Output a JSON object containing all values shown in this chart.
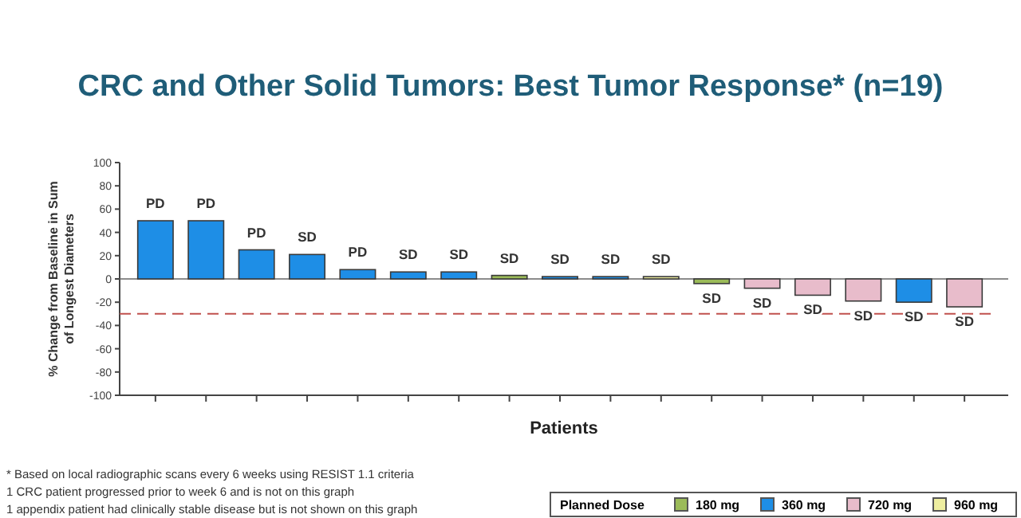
{
  "chart_data": {
    "type": "bar",
    "title": "CRC and Other Solid Tumors: Best Tumor Response* (n=19)",
    "xlabel": "Patients",
    "ylabel": "% Change from Baseline in Sum of Longest Diameters",
    "legend_title": "Planned Dose",
    "categories": [
      null,
      null,
      null,
      null,
      null,
      null,
      null,
      null,
      null,
      null,
      null,
      null,
      null,
      null,
      null,
      null,
      null
    ],
    "stacked": true,
    "series": [
      {
        "name": "180 mg",
        "color": "#9bbb59",
        "values": [
          null,
          null,
          null,
          null,
          null,
          null,
          null,
          3,
          null,
          null,
          null,
          -4,
          null,
          null,
          null,
          null,
          null
        ],
        "value_labels": [
          null,
          null,
          null,
          null,
          null,
          null,
          null,
          "SD",
          null,
          null,
          null,
          "SD",
          null,
          null,
          null,
          null,
          null
        ]
      },
      {
        "name": "360 mg",
        "color": "#1e8ee6",
        "values": [
          50,
          50,
          25,
          21,
          8,
          6,
          6,
          null,
          2,
          2,
          null,
          null,
          null,
          null,
          null,
          -20,
          null
        ],
        "value_labels": [
          "PD",
          "PD",
          "PD",
          "SD",
          "PD",
          "SD",
          "SD",
          null,
          "SD",
          "SD",
          null,
          null,
          null,
          null,
          null,
          "SD",
          null
        ]
      },
      {
        "name": "720 mg",
        "color": "#e8bccb",
        "values": [
          null,
          null,
          null,
          null,
          null,
          null,
          null,
          null,
          null,
          null,
          null,
          null,
          -8,
          -14,
          -19,
          null,
          -24
        ],
        "value_labels": [
          null,
          null,
          null,
          null,
          null,
          null,
          null,
          null,
          null,
          null,
          null,
          null,
          "SD",
          "SD",
          "SD",
          null,
          "SD"
        ]
      },
      {
        "name": "960 mg",
        "color": "#eeeea0",
        "values": [
          null,
          null,
          null,
          null,
          null,
          null,
          null,
          null,
          null,
          null,
          2,
          null,
          null,
          null,
          null,
          null,
          null
        ],
        "value_labels": [
          null,
          null,
          null,
          null,
          null,
          null,
          null,
          null,
          null,
          null,
          "SD",
          null,
          null,
          null,
          null,
          null,
          null
        ]
      }
    ],
    "ylim": [
      -100,
      100
    ],
    "yticks": [
      -100,
      -80,
      -60,
      -40,
      -20,
      0,
      20,
      40,
      60,
      80,
      100
    ],
    "legend": "bottom right",
    "ref_lines": [
      {
        "axis": "y",
        "value": -30,
        "color": "#c0504d",
        "line_style": "dashed"
      }
    ],
    "annotations": [
      "* Based on local radiographic scans every 6 weeks using RESIST 1.1 criteria",
      "1 CRC patient progressed prior to week 6 and is not on this graph",
      "1 appendix patient had clinically stable disease but is not shown on this graph"
    ]
  }
}
